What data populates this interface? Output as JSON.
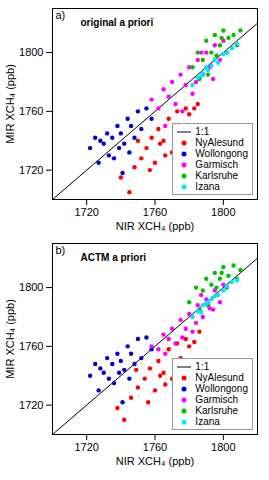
{
  "chart_data": [
    {
      "type": "scatter",
      "title": "original a priori",
      "annotations": [
        "a)"
      ],
      "x_label": "NIR XCH₄ (ppb)",
      "y_label": "MIR XCH₄ (ppb)",
      "xlim": [
        1700,
        1820
      ],
      "ylim": [
        1700,
        1830
      ],
      "xticks": [
        1720,
        1760,
        1800
      ],
      "yticks": [
        1720,
        1760,
        1800
      ],
      "grid": false,
      "legend": "bottom-right",
      "series": [
        {
          "name": "1:1",
          "type": "line",
          "color": "#000000",
          "line_style": "solid",
          "x": [
            1700,
            1820
          ],
          "values": [
            1700,
            1820
          ]
        },
        {
          "name": "NyAlesund",
          "color": "#ff0000",
          "marker": "circle",
          "x": [
            1745,
            1748,
            1752,
            1755,
            1758,
            1760,
            1762,
            1765,
            1768,
            1770,
            1772,
            1775,
            1778,
            1780,
            1783,
            1750,
            1757,
            1766,
            1773,
            1785,
            1740,
            1763
          ],
          "values": [
            1705,
            1722,
            1728,
            1735,
            1742,
            1725,
            1748,
            1740,
            1755,
            1732,
            1745,
            1750,
            1762,
            1758,
            1762,
            1740,
            1720,
            1730,
            1760,
            1765,
            1715,
            1738
          ]
        },
        {
          "name": "Wollongong",
          "color": "#0000cc",
          "marker": "circle",
          "x": [
            1722,
            1725,
            1728,
            1730,
            1732,
            1735,
            1736,
            1738,
            1740,
            1742,
            1744,
            1746,
            1748,
            1750,
            1752,
            1755,
            1727,
            1733,
            1741,
            1758,
            1745,
            1739
          ],
          "values": [
            1735,
            1742,
            1740,
            1738,
            1745,
            1742,
            1728,
            1750,
            1745,
            1738,
            1755,
            1750,
            1742,
            1760,
            1748,
            1762,
            1725,
            1730,
            1718,
            1755,
            1732,
            1735
          ]
        },
        {
          "name": "Garmisch",
          "color": "#ff00ff",
          "marker": "circle",
          "x": [
            1758,
            1762,
            1765,
            1768,
            1770,
            1772,
            1775,
            1778,
            1780,
            1782,
            1785,
            1788,
            1790,
            1792,
            1795,
            1798,
            1800,
            1776,
            1784,
            1766,
            1794,
            1787
          ],
          "values": [
            1768,
            1762,
            1775,
            1770,
            1780,
            1765,
            1785,
            1778,
            1790,
            1772,
            1795,
            1785,
            1800,
            1790,
            1805,
            1795,
            1808,
            1760,
            1780,
            1750,
            1782,
            1800
          ]
        },
        {
          "name": "Karlsruhe",
          "color": "#00c000",
          "marker": "circle",
          "x": [
            1782,
            1785,
            1788,
            1790,
            1793,
            1795,
            1798,
            1800,
            1803,
            1806,
            1808,
            1810,
            1796,
            1791,
            1802,
            1786,
            1799
          ],
          "values": [
            1790,
            1800,
            1795,
            1808,
            1800,
            1812,
            1805,
            1815,
            1810,
            1812,
            1805,
            1815,
            1798,
            1785,
            1800,
            1782,
            1810
          ]
        },
        {
          "name": "Izana",
          "color": "#00e5ff",
          "marker": "circle",
          "x": [
            1782,
            1785,
            1788,
            1790,
            1793,
            1795,
            1797,
            1800,
            1802,
            1805,
            1808,
            1791,
            1787
          ],
          "values": [
            1778,
            1783,
            1786,
            1790,
            1791,
            1795,
            1793,
            1799,
            1800,
            1803,
            1806,
            1788,
            1784
          ]
        }
      ]
    },
    {
      "type": "scatter",
      "title": "ACTM a priori",
      "annotations": [
        "b)"
      ],
      "x_label": "NIR XCH₄ (ppb)",
      "y_label": "MIR XCH₄ (ppb)",
      "xlim": [
        1700,
        1820
      ],
      "ylim": [
        1700,
        1830
      ],
      "xticks": [
        1720,
        1760,
        1800
      ],
      "yticks": [
        1720,
        1760,
        1800
      ],
      "grid": false,
      "legend": "bottom-right",
      "series": [
        {
          "name": "1:1",
          "type": "line",
          "color": "#000000",
          "line_style": "solid",
          "x": [
            1700,
            1820
          ],
          "values": [
            1700,
            1820
          ]
        },
        {
          "name": "NyAlesund",
          "color": "#ff0000",
          "marker": "circle",
          "x": [
            1742,
            1746,
            1750,
            1754,
            1757,
            1760,
            1762,
            1765,
            1768,
            1770,
            1772,
            1775,
            1778,
            1780,
            1783,
            1749,
            1756,
            1766,
            1773,
            1786,
            1738,
            1763
          ],
          "values": [
            1710,
            1725,
            1732,
            1738,
            1745,
            1730,
            1750,
            1742,
            1758,
            1738,
            1748,
            1752,
            1765,
            1760,
            1763,
            1744,
            1722,
            1734,
            1762,
            1770,
            1718,
            1740
          ]
        },
        {
          "name": "Wollongong",
          "color": "#0000cc",
          "marker": "circle",
          "x": [
            1722,
            1725,
            1728,
            1730,
            1732,
            1735,
            1736,
            1738,
            1740,
            1742,
            1744,
            1746,
            1748,
            1750,
            1752,
            1755,
            1727,
            1733,
            1741,
            1758,
            1745,
            1739
          ],
          "values": [
            1740,
            1748,
            1745,
            1742,
            1752,
            1748,
            1735,
            1755,
            1750,
            1744,
            1760,
            1755,
            1748,
            1765,
            1752,
            1766,
            1730,
            1738,
            1722,
            1758,
            1738,
            1742
          ]
        },
        {
          "name": "Garmisch",
          "color": "#ff00ff",
          "marker": "circle",
          "x": [
            1758,
            1762,
            1765,
            1768,
            1770,
            1772,
            1775,
            1778,
            1780,
            1782,
            1785,
            1788,
            1790,
            1792,
            1795,
            1798,
            1800,
            1776,
            1784,
            1766,
            1794,
            1787
          ],
          "values": [
            1760,
            1758,
            1768,
            1765,
            1772,
            1762,
            1778,
            1772,
            1782,
            1770,
            1788,
            1780,
            1792,
            1786,
            1798,
            1790,
            1802,
            1766,
            1776,
            1755,
            1785,
            1795
          ]
        },
        {
          "name": "Karlsruhe",
          "color": "#00c000",
          "marker": "circle",
          "x": [
            1780,
            1784,
            1788,
            1790,
            1793,
            1795,
            1798,
            1800,
            1803,
            1806,
            1808,
            1810,
            1796,
            1791,
            1802,
            1786,
            1799
          ],
          "values": [
            1790,
            1800,
            1798,
            1806,
            1802,
            1810,
            1806,
            1814,
            1808,
            1815,
            1806,
            1812,
            1800,
            1788,
            1800,
            1785,
            1810
          ]
        },
        {
          "name": "Izana",
          "color": "#00e5ff",
          "marker": "circle",
          "x": [
            1782,
            1785,
            1788,
            1790,
            1793,
            1795,
            1797,
            1800,
            1802,
            1805,
            1808,
            1791,
            1787
          ],
          "values": [
            1780,
            1784,
            1788,
            1789,
            1792,
            1794,
            1795,
            1798,
            1801,
            1804,
            1805,
            1790,
            1783
          ]
        }
      ]
    }
  ]
}
